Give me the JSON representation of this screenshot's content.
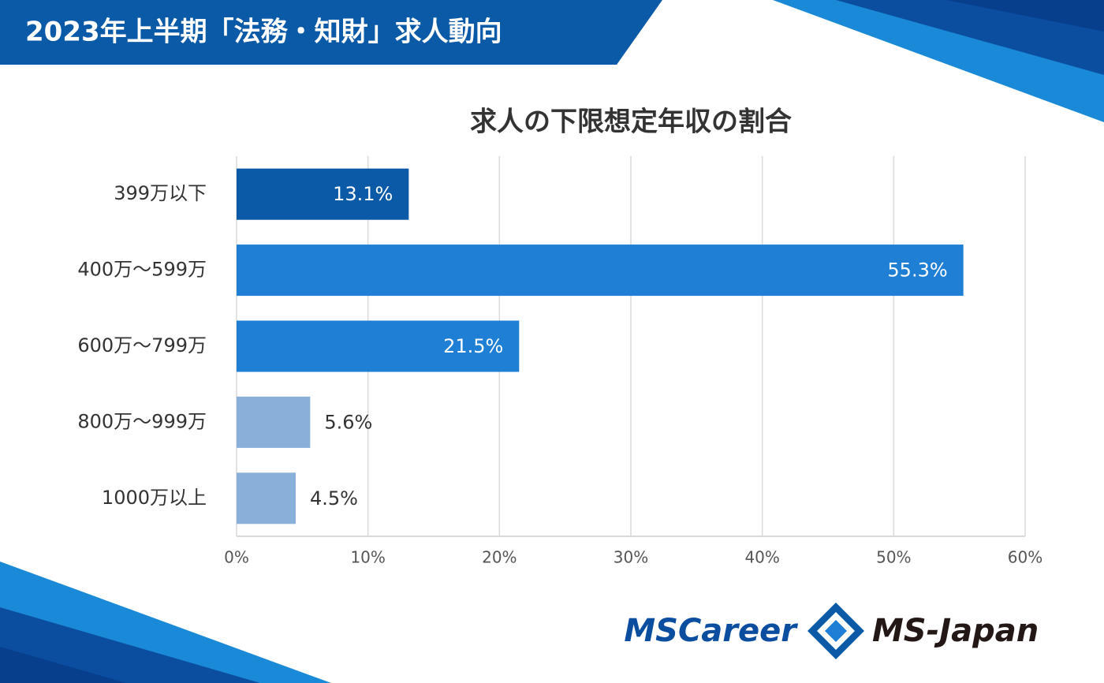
{
  "header": {
    "title": "2023年上半期「法務・知財」求人動向"
  },
  "chart_data": {
    "type": "hbar",
    "title": "求人の下限想定年収の割合",
    "categories": [
      "399万以下",
      "400万～599万",
      "600万～799万",
      "800万～999万",
      "1000万以上"
    ],
    "values": [
      13.1,
      55.3,
      21.5,
      5.6,
      4.5
    ],
    "value_labels": [
      "13.1%",
      "55.3%",
      "21.5%",
      "5.6%",
      "4.5%"
    ],
    "colors": [
      "#0b5aa8",
      "#1f7fd4",
      "#1f7fd4",
      "#88b0d9",
      "#88b0d9"
    ],
    "xlim": [
      0,
      60
    ],
    "xticks": [
      {
        "value": 0,
        "label": "0%"
      },
      {
        "value": 10,
        "label": "10%"
      },
      {
        "value": 20,
        "label": "20%"
      },
      {
        "value": 30,
        "label": "30%"
      },
      {
        "value": 40,
        "label": "40%"
      },
      {
        "value": 50,
        "label": "50%"
      },
      {
        "value": 60,
        "label": "60%"
      }
    ],
    "grid": true
  },
  "footer": {
    "logos": [
      "MSCareer",
      "MS-Japan"
    ]
  }
}
